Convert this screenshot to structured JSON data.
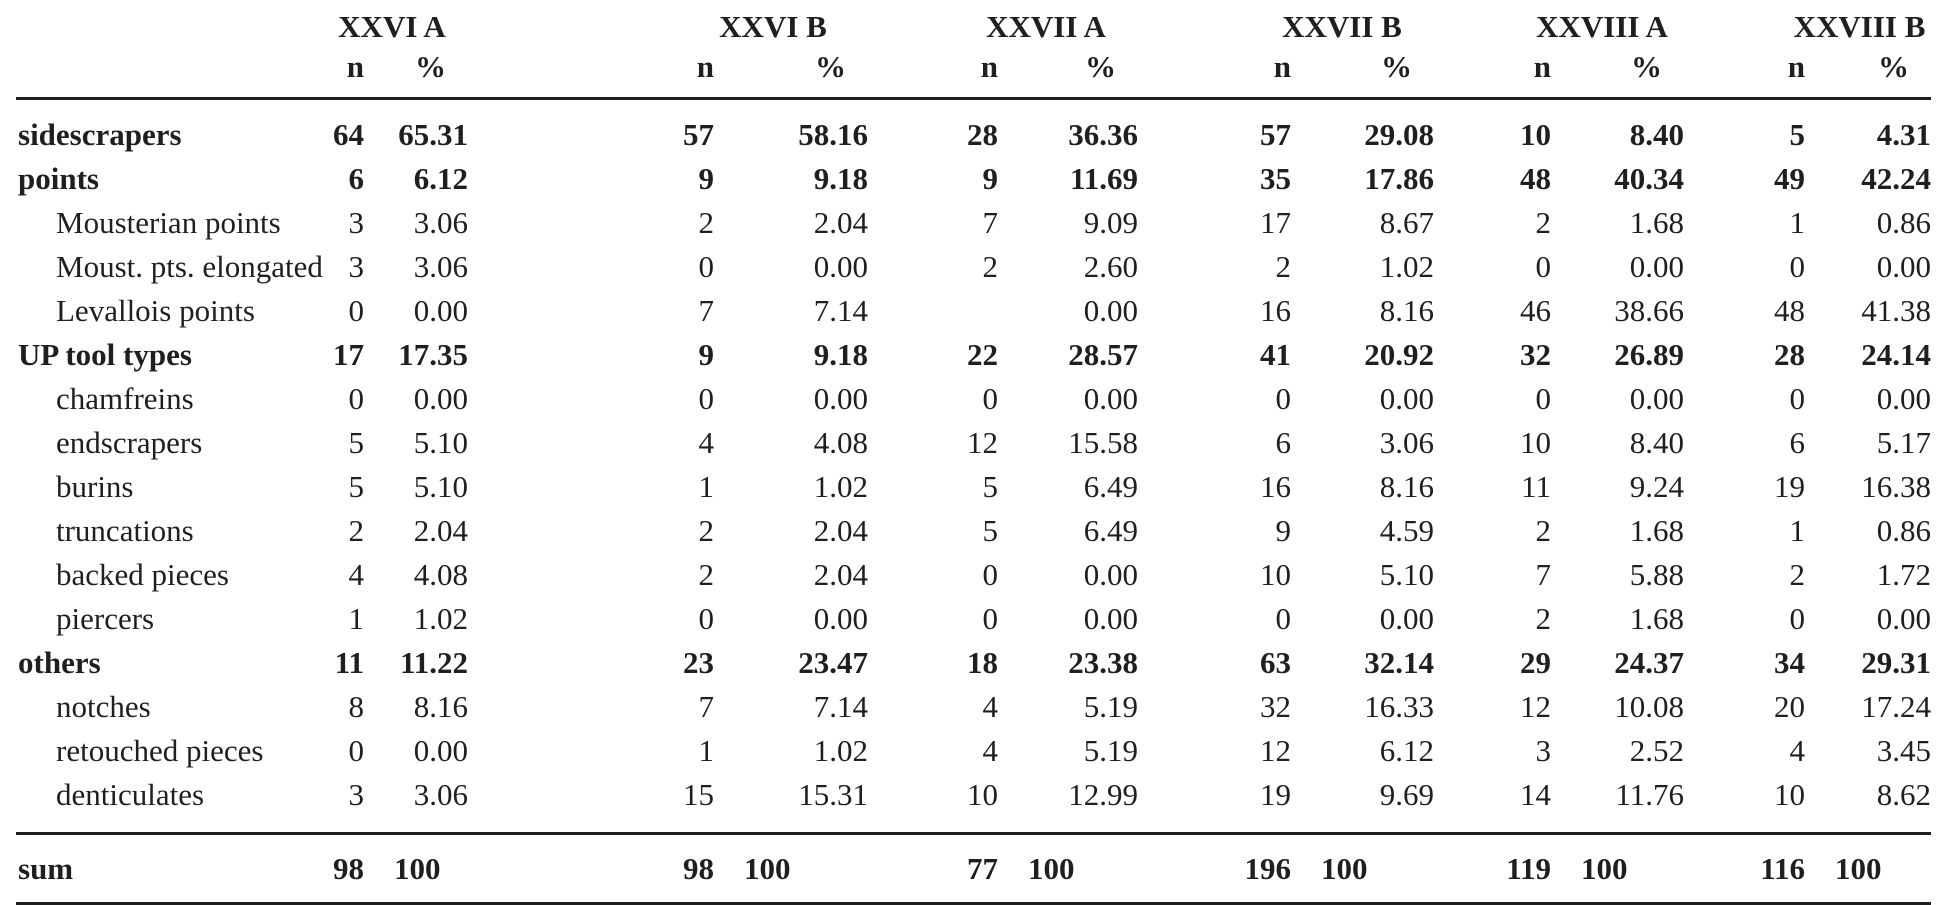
{
  "chart_data": {
    "type": "table",
    "title": "",
    "groups": [
      "XXVI A",
      "XXVI B",
      "XXVII A",
      "XXVII B",
      "XXVIII A",
      "XXVIII B"
    ],
    "subheaders": [
      "n",
      "%"
    ],
    "rows": [
      {
        "label": "sidescrapers",
        "bold": true,
        "indent": false,
        "values": [
          [
            "64",
            "65.31"
          ],
          [
            "57",
            "58.16"
          ],
          [
            "28",
            "36.36"
          ],
          [
            "57",
            "29.08"
          ],
          [
            "10",
            "8.40"
          ],
          [
            "5",
            "4.31"
          ]
        ]
      },
      {
        "label": "points",
        "bold": true,
        "indent": false,
        "values": [
          [
            "6",
            "6.12"
          ],
          [
            "9",
            "9.18"
          ],
          [
            "9",
            "11.69"
          ],
          [
            "35",
            "17.86"
          ],
          [
            "48",
            "40.34"
          ],
          [
            "49",
            "42.24"
          ]
        ]
      },
      {
        "label": "Mousterian points",
        "bold": false,
        "indent": true,
        "values": [
          [
            "3",
            "3.06"
          ],
          [
            "2",
            "2.04"
          ],
          [
            "7",
            "9.09"
          ],
          [
            "17",
            "8.67"
          ],
          [
            "2",
            "1.68"
          ],
          [
            "1",
            "0.86"
          ]
        ]
      },
      {
        "label": "Moust. pts. elongated",
        "bold": false,
        "indent": true,
        "values": [
          [
            "3",
            "3.06"
          ],
          [
            "0",
            "0.00"
          ],
          [
            "2",
            "2.60"
          ],
          [
            "2",
            "1.02"
          ],
          [
            "0",
            "0.00"
          ],
          [
            "0",
            "0.00"
          ]
        ]
      },
      {
        "label": "Levallois points",
        "bold": false,
        "indent": true,
        "values": [
          [
            "0",
            "0.00"
          ],
          [
            "7",
            "7.14"
          ],
          [
            "",
            "0.00"
          ],
          [
            "16",
            "8.16"
          ],
          [
            "46",
            "38.66"
          ],
          [
            "48",
            "41.38"
          ]
        ]
      },
      {
        "label": "UP tool types",
        "bold": true,
        "indent": false,
        "values": [
          [
            "17",
            "17.35"
          ],
          [
            "9",
            "9.18"
          ],
          [
            "22",
            "28.57"
          ],
          [
            "41",
            "20.92"
          ],
          [
            "32",
            "26.89"
          ],
          [
            "28",
            "24.14"
          ]
        ]
      },
      {
        "label": "chamfreins",
        "bold": false,
        "indent": true,
        "values": [
          [
            "0",
            "0.00"
          ],
          [
            "0",
            "0.00"
          ],
          [
            "0",
            "0.00"
          ],
          [
            "0",
            "0.00"
          ],
          [
            "0",
            "0.00"
          ],
          [
            "0",
            "0.00"
          ]
        ]
      },
      {
        "label": "endscrapers",
        "bold": false,
        "indent": true,
        "values": [
          [
            "5",
            "5.10"
          ],
          [
            "4",
            "4.08"
          ],
          [
            "12",
            "15.58"
          ],
          [
            "6",
            "3.06"
          ],
          [
            "10",
            "8.40"
          ],
          [
            "6",
            "5.17"
          ]
        ]
      },
      {
        "label": "burins",
        "bold": false,
        "indent": true,
        "values": [
          [
            "5",
            "5.10"
          ],
          [
            "1",
            "1.02"
          ],
          [
            "5",
            "6.49"
          ],
          [
            "16",
            "8.16"
          ],
          [
            "11",
            "9.24"
          ],
          [
            "19",
            "16.38"
          ]
        ]
      },
      {
        "label": "truncations",
        "bold": false,
        "indent": true,
        "values": [
          [
            "2",
            "2.04"
          ],
          [
            "2",
            "2.04"
          ],
          [
            "5",
            "6.49"
          ],
          [
            "9",
            "4.59"
          ],
          [
            "2",
            "1.68"
          ],
          [
            "1",
            "0.86"
          ]
        ]
      },
      {
        "label": "backed pieces",
        "bold": false,
        "indent": true,
        "values": [
          [
            "4",
            "4.08"
          ],
          [
            "2",
            "2.04"
          ],
          [
            "0",
            "0.00"
          ],
          [
            "10",
            "5.10"
          ],
          [
            "7",
            "5.88"
          ],
          [
            "2",
            "1.72"
          ]
        ]
      },
      {
        "label": "piercers",
        "bold": false,
        "indent": true,
        "values": [
          [
            "1",
            "1.02"
          ],
          [
            "0",
            "0.00"
          ],
          [
            "0",
            "0.00"
          ],
          [
            "0",
            "0.00"
          ],
          [
            "2",
            "1.68"
          ],
          [
            "0",
            "0.00"
          ]
        ]
      },
      {
        "label": "others",
        "bold": true,
        "indent": false,
        "values": [
          [
            "11",
            "11.22"
          ],
          [
            "23",
            "23.47"
          ],
          [
            "18",
            "23.38"
          ],
          [
            "63",
            "32.14"
          ],
          [
            "29",
            "24.37"
          ],
          [
            "34",
            "29.31"
          ]
        ]
      },
      {
        "label": "notches",
        "bold": false,
        "indent": true,
        "values": [
          [
            "8",
            "8.16"
          ],
          [
            "7",
            "7.14"
          ],
          [
            "4",
            "5.19"
          ],
          [
            "32",
            "16.33"
          ],
          [
            "12",
            "10.08"
          ],
          [
            "20",
            "17.24"
          ]
        ]
      },
      {
        "label": "retouched pieces",
        "bold": false,
        "indent": true,
        "values": [
          [
            "0",
            "0.00"
          ],
          [
            "1",
            "1.02"
          ],
          [
            "4",
            "5.19"
          ],
          [
            "12",
            "6.12"
          ],
          [
            "3",
            "2.52"
          ],
          [
            "4",
            "3.45"
          ]
        ]
      },
      {
        "label": "denticulates",
        "bold": false,
        "indent": true,
        "values": [
          [
            "3",
            "3.06"
          ],
          [
            "15",
            "15.31"
          ],
          [
            "10",
            "12.99"
          ],
          [
            "19",
            "9.69"
          ],
          [
            "14",
            "11.76"
          ],
          [
            "10",
            "8.62"
          ]
        ]
      }
    ],
    "sum_row": {
      "label": "sum",
      "values": [
        [
          "98",
          "100"
        ],
        [
          "98",
          "100"
        ],
        [
          "77",
          "100"
        ],
        [
          "196",
          "100"
        ],
        [
          "119",
          "100"
        ],
        [
          "116",
          "100"
        ]
      ]
    }
  }
}
